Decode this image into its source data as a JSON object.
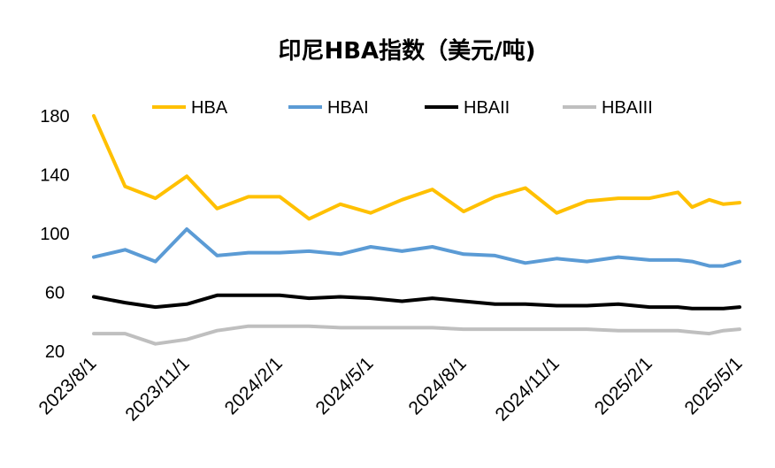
{
  "chart_data": {
    "type": "line",
    "title": "印尼HBA指数（美元/吨)",
    "xlabel": "",
    "ylabel": "",
    "ylim": [
      20,
      180
    ],
    "yticks": [
      20,
      60,
      100,
      140,
      180
    ],
    "xtick_labels": [
      "2023/8/1",
      "2023/11/1",
      "2024/2/1",
      "2024/5/1",
      "2024/8/1",
      "2024/11/1",
      "2025/2/1",
      "2025/5/1"
    ],
    "legend_position": "top",
    "grid": false,
    "x": [
      "2023/8/1",
      "2023/9/1",
      "2023/10/1",
      "2023/11/1",
      "2023/12/1",
      "2024/1/1",
      "2024/2/1",
      "2024/3/1",
      "2024/4/1",
      "2024/5/1",
      "2024/6/1",
      "2024/7/1",
      "2024/8/1",
      "2024/9/1",
      "2024/10/1",
      "2024/11/1",
      "2024/12/1",
      "2025/1/1",
      "2025/2/1",
      "2025/3/1",
      "2025/3/15",
      "2025/4/1",
      "2025/4/15",
      "2025/5/1"
    ],
    "series": [
      {
        "name": "HBA",
        "color": "#FFC000",
        "values": [
          180,
          132,
          124,
          139,
          117,
          125,
          125,
          110,
          120,
          114,
          123,
          130,
          115,
          125,
          131,
          114,
          122,
          124,
          124,
          128,
          118,
          123,
          120,
          121
        ]
      },
      {
        "name": "HBAI",
        "color": "#5B9BD5",
        "values": [
          84,
          89,
          81,
          103,
          85,
          87,
          87,
          88,
          86,
          91,
          88,
          91,
          86,
          85,
          80,
          83,
          81,
          84,
          82,
          82,
          81,
          78,
          78,
          81
        ]
      },
      {
        "name": "HBAII",
        "color": "#000000",
        "values": [
          57,
          53,
          50,
          52,
          58,
          58,
          58,
          56,
          57,
          56,
          54,
          56,
          54,
          52,
          52,
          51,
          51,
          52,
          50,
          50,
          49,
          49,
          49,
          50
        ]
      },
      {
        "name": "HBAIII",
        "color": "#BFBFBF",
        "values": [
          32,
          32,
          25,
          28,
          34,
          37,
          37,
          37,
          36,
          36,
          36,
          36,
          35,
          35,
          35,
          35,
          35,
          34,
          34,
          34,
          33,
          32,
          34,
          35
        ]
      }
    ]
  }
}
